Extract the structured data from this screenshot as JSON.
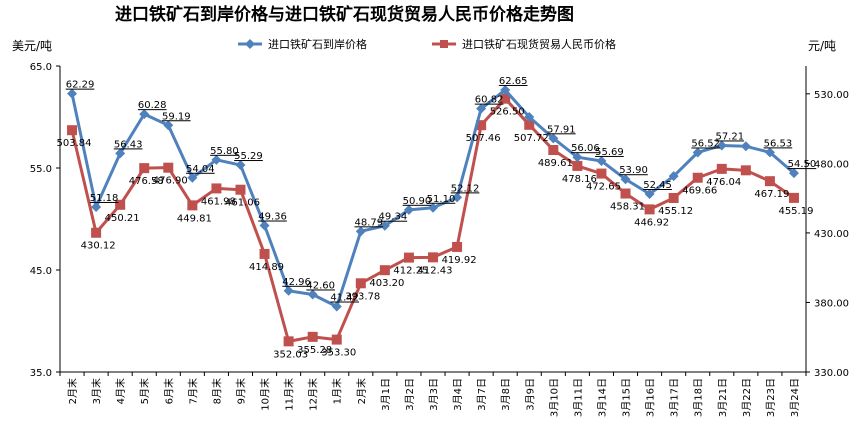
{
  "chart_data": {
    "type": "line",
    "title": "进口铁矿石到岸价格与进口铁矿石现货贸易人民币价格走势图",
    "left_unit": "美元/吨",
    "right_unit": "元/吨",
    "categories": [
      "2月末",
      "3月末",
      "4月末",
      "5月末",
      "6月末",
      "7月末",
      "8月末",
      "9月末",
      "10月末",
      "11月末",
      "12月末",
      "1月末",
      "2月末",
      "3月1日",
      "3月2日",
      "3月3日",
      "3月4日",
      "3月7日",
      "3月8日",
      "3月9日",
      "3月10日",
      "3月11日",
      "3月14日",
      "3月15日",
      "3月16日",
      "3月17日",
      "3月18日",
      "3月21日",
      "3月22日",
      "3月23日",
      "3月24日"
    ],
    "y_left": {
      "ticks": [
        "35.0",
        "45.0",
        "55.0",
        "65.0"
      ],
      "ylim": [
        35,
        65
      ]
    },
    "y_right": {
      "ticks": [
        "330.00",
        "380.00",
        "430.00",
        "480.00",
        "530.00"
      ],
      "ylim": [
        330,
        550
      ]
    },
    "series": [
      {
        "name": "进口铁矿石到岸价格",
        "axis": "left",
        "color": "#4f81bd",
        "marker": "diamond",
        "values": [
          62.29,
          51.18,
          56.43,
          60.28,
          59.19,
          54.04,
          55.8,
          55.29,
          49.36,
          42.96,
          42.6,
          41.42,
          48.79,
          49.34,
          50.9,
          51.1,
          52.12,
          60.82,
          62.65,
          60.0,
          57.91,
          56.06,
          55.69,
          53.9,
          52.45,
          54.2,
          56.52,
          57.21,
          57.13,
          56.53,
          54.5
        ],
        "labels": [
          "62.29",
          "51.18",
          "56.43",
          "60.28",
          "59.19",
          "54.04",
          "55.80",
          "55.29",
          "49.36",
          "42.96",
          "42.60",
          "41.42",
          "48.79",
          "49.34",
          "50.90",
          "51.10",
          "52.12",
          "60.82",
          "62.65",
          "",
          "57.91",
          "56.06",
          "55.69",
          "53.90",
          "52.45",
          "",
          "56.52",
          "57.21",
          "",
          "56.53",
          "54.50"
        ]
      },
      {
        "name": "进口铁矿石现货贸易人民币价格",
        "axis": "right",
        "color": "#c0504d",
        "marker": "square",
        "values": [
          503.84,
          430.12,
          450.21,
          476.58,
          476.9,
          449.81,
          461.98,
          461.06,
          414.89,
          352.03,
          355.28,
          353.3,
          393.78,
          403.2,
          412.25,
          412.43,
          419.92,
          507.46,
          526.5,
          507.72,
          489.61,
          478.16,
          472.65,
          458.31,
          446.92,
          455.12,
          469.66,
          476.04,
          475.0,
          467.19,
          455.19
        ],
        "labels": [
          "503.84",
          "430.12",
          "450.21",
          "476.58",
          "476.90",
          "449.81",
          "461.98",
          "461.06",
          "414.89",
          "352.03",
          "355.28",
          "353.30",
          "393.78",
          "403.20",
          "412.25",
          "412.43",
          "419.92",
          "507.46",
          "526.50",
          "507.72",
          "489.61",
          "478.16",
          "472.65",
          "458.31",
          "446.92",
          "455.12",
          "469.66",
          "476.04",
          "",
          "467.19",
          "455.19"
        ]
      }
    ],
    "grid": false,
    "legend": "top-center"
  }
}
